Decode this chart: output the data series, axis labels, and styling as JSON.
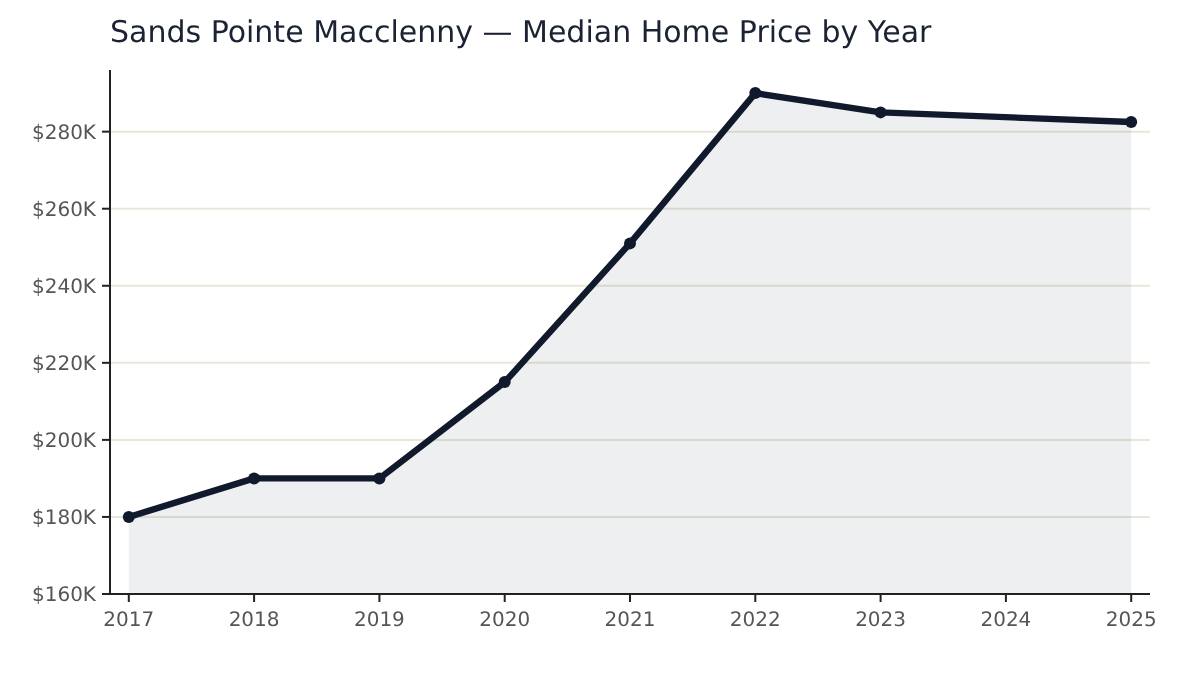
{
  "chart_data": {
    "type": "area",
    "title": "Sands Pointe Macclenny — Median Home Price by Year",
    "x": [
      2017,
      2018,
      2019,
      2020,
      2021,
      2022,
      2023,
      2025
    ],
    "series": [
      {
        "color": "#111a2c",
        "values": [
          180000,
          190000,
          190000,
          215000,
          251000,
          290000,
          285000,
          282500
        ]
      }
    ],
    "xlim": [
      2016.85,
      2025.15
    ],
    "xticks": [
      2017,
      2018,
      2019,
      2020,
      2021,
      2022,
      2023,
      2024,
      2025
    ],
    "ylim": [
      160000,
      296000
    ],
    "yticks": [
      {
        "value": 160000,
        "label": "$160K"
      },
      {
        "value": 180000,
        "label": "$180K"
      },
      {
        "value": 200000,
        "label": "$200K"
      },
      {
        "value": 220000,
        "label": "$220K"
      },
      {
        "value": 240000,
        "label": "$240K"
      },
      {
        "value": 260000,
        "label": "$260K"
      },
      {
        "value": 280000,
        "label": "$280K"
      }
    ],
    "grid": "y",
    "marker": "circle",
    "line_style": "solid"
  }
}
